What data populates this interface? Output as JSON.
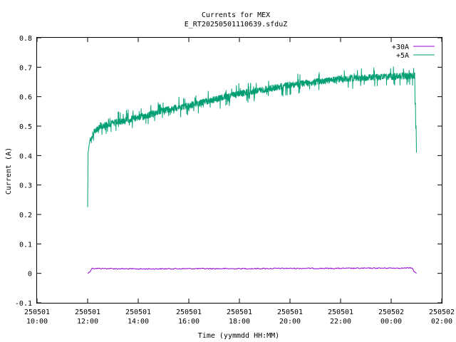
{
  "chart_data": {
    "type": "line",
    "title": "Currents for MEX",
    "subtitle": "E_RT20250501110639.sfduZ",
    "xlabel": "Time (yymmdd HH:MM)",
    "ylabel": "Current (A)",
    "xlim": [
      "2025-05-01 10:00",
      "2025-05-02 02:00"
    ],
    "ylim": [
      -0.1,
      0.8
    ],
    "x_ticks": [
      {
        "value": "2025-05-01 10:00",
        "date": "250501",
        "time": "10:00"
      },
      {
        "value": "2025-05-01 12:00",
        "date": "250501",
        "time": "12:00"
      },
      {
        "value": "2025-05-01 14:00",
        "date": "250501",
        "time": "14:00"
      },
      {
        "value": "2025-05-01 16:00",
        "date": "250501",
        "time": "16:00"
      },
      {
        "value": "2025-05-01 18:00",
        "date": "250501",
        "time": "18:00"
      },
      {
        "value": "2025-05-01 20:00",
        "date": "250501",
        "time": "20:00"
      },
      {
        "value": "2025-05-01 22:00",
        "date": "250501",
        "time": "22:00"
      },
      {
        "value": "2025-05-02 00:00",
        "date": "250502",
        "time": "00:00"
      },
      {
        "value": "2025-05-02 02:00",
        "date": "250502",
        "time": "02:00"
      }
    ],
    "y_ticks": [
      "-0.1",
      "0",
      "0.1",
      "0.2",
      "0.3",
      "0.4",
      "0.5",
      "0.6",
      "0.7",
      "0.8"
    ],
    "grid": false,
    "legend_position": "top-right",
    "series": [
      {
        "name": "+30A",
        "color": "#9400d3",
        "x": [
          "2025-05-01 12:00",
          "2025-05-01 12:05",
          "2025-05-01 12:10",
          "2025-05-01 13:00",
          "2025-05-01 14:00",
          "2025-05-01 16:00",
          "2025-05-01 18:00",
          "2025-05-01 20:00",
          "2025-05-01 22:00",
          "2025-05-02 00:00",
          "2025-05-02 00:50",
          "2025-05-02 00:55",
          "2025-05-02 01:00"
        ],
        "y": [
          0.0,
          0.005,
          0.017,
          0.016,
          0.015,
          0.016,
          0.016,
          0.017,
          0.017,
          0.018,
          0.018,
          0.005,
          0.0
        ]
      },
      {
        "name": "+5A",
        "color": "#009e73",
        "x": [
          "2025-05-01 12:00",
          "2025-05-01 12:01",
          "2025-05-01 12:05",
          "2025-05-01 12:15",
          "2025-05-01 12:30",
          "2025-05-01 13:00",
          "2025-05-01 13:30",
          "2025-05-01 14:00",
          "2025-05-01 14:30",
          "2025-05-01 15:00",
          "2025-05-01 16:00",
          "2025-05-01 17:00",
          "2025-05-01 18:00",
          "2025-05-01 19:00",
          "2025-05-01 20:00",
          "2025-05-01 21:00",
          "2025-05-01 22:00",
          "2025-05-01 23:00",
          "2025-05-02 00:00",
          "2025-05-02 00:30",
          "2025-05-02 00:55",
          "2025-05-02 01:00"
        ],
        "y": [
          0.225,
          0.41,
          0.45,
          0.48,
          0.5,
          0.51,
          0.52,
          0.53,
          0.54,
          0.555,
          0.57,
          0.59,
          0.61,
          0.625,
          0.64,
          0.65,
          0.66,
          0.665,
          0.668,
          0.67,
          0.67,
          0.41
        ]
      }
    ]
  }
}
